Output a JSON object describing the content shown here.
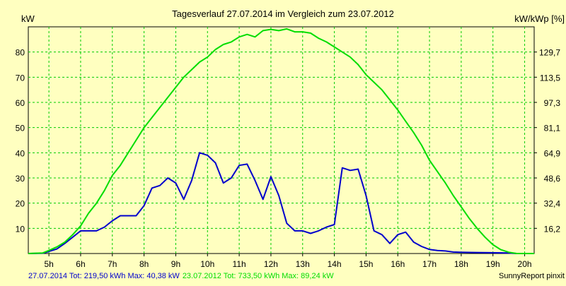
{
  "chart_data": {
    "type": "line",
    "title": "Tagesverlauf 27.07.2014 im Vergleich zum 23.07.2012",
    "ylabel_left": "kW",
    "ylabel_right": "kW/kWp [%]",
    "ylim": [
      0,
      90
    ],
    "xlim": [
      4.35,
      20.3
    ],
    "grid": true,
    "y_ticks": [
      10,
      20,
      30,
      40,
      50,
      60,
      70,
      80
    ],
    "right_ticks": [
      "16,2",
      "32,4",
      "48,6",
      "64,9",
      "81,1",
      "97,3",
      "113,5",
      "129,7"
    ],
    "x_ticks": [
      {
        "x": 5,
        "label": "5h"
      },
      {
        "x": 6,
        "label": "6h"
      },
      {
        "x": 7,
        "label": "7h"
      },
      {
        "x": 8,
        "label": "8h"
      },
      {
        "x": 9,
        "label": "9h"
      },
      {
        "x": 10,
        "label": "10h"
      },
      {
        "x": 11,
        "label": "11h"
      },
      {
        "x": 12,
        "label": "12h"
      },
      {
        "x": 13,
        "label": "13h"
      },
      {
        "x": 14,
        "label": "14h"
      },
      {
        "x": 15,
        "label": "15h"
      },
      {
        "x": 16,
        "label": "16h"
      },
      {
        "x": 17,
        "label": "17h"
      },
      {
        "x": 18,
        "label": "18h"
      },
      {
        "x": 19,
        "label": "19h"
      },
      {
        "x": 20,
        "label": "20h"
      }
    ],
    "series": [
      {
        "name": "27.07.2014",
        "color": "#0000cc",
        "legend": "27.07.2014 Tot: 219,50 kWh Max: 40,38 kW",
        "points": [
          [
            4.35,
            0
          ],
          [
            4.8,
            0.1
          ],
          [
            5.0,
            0.8
          ],
          [
            5.25,
            1.8
          ],
          [
            5.5,
            4
          ],
          [
            5.75,
            6.5
          ],
          [
            6.0,
            9
          ],
          [
            6.25,
            9
          ],
          [
            6.5,
            9
          ],
          [
            6.75,
            10.5
          ],
          [
            7.0,
            13
          ],
          [
            7.25,
            15
          ],
          [
            7.5,
            15
          ],
          [
            7.75,
            15
          ],
          [
            8.0,
            19
          ],
          [
            8.25,
            26
          ],
          [
            8.5,
            27
          ],
          [
            8.75,
            30
          ],
          [
            9.0,
            28
          ],
          [
            9.25,
            21.5
          ],
          [
            9.5,
            29
          ],
          [
            9.75,
            40
          ],
          [
            10.0,
            39
          ],
          [
            10.25,
            36
          ],
          [
            10.5,
            28
          ],
          [
            10.75,
            30
          ],
          [
            11.0,
            35
          ],
          [
            11.25,
            35.5
          ],
          [
            11.5,
            29
          ],
          [
            11.75,
            21.5
          ],
          [
            12.0,
            30.5
          ],
          [
            12.25,
            23
          ],
          [
            12.5,
            12
          ],
          [
            12.75,
            9
          ],
          [
            13.0,
            9
          ],
          [
            13.25,
            8
          ],
          [
            13.5,
            9
          ],
          [
            13.75,
            10.5
          ],
          [
            14.0,
            11.5
          ],
          [
            14.25,
            34
          ],
          [
            14.5,
            33
          ],
          [
            14.75,
            33.5
          ],
          [
            15.0,
            23
          ],
          [
            15.25,
            9
          ],
          [
            15.5,
            7.5
          ],
          [
            15.75,
            4
          ],
          [
            16.0,
            7.5
          ],
          [
            16.25,
            8.5
          ],
          [
            16.5,
            4.5
          ],
          [
            16.75,
            2.8
          ],
          [
            17.0,
            1.6
          ],
          [
            17.25,
            1.2
          ],
          [
            17.5,
            1.0
          ],
          [
            17.75,
            0.6
          ],
          [
            18.0,
            0.5
          ],
          [
            18.5,
            0.4
          ],
          [
            19.0,
            0.3
          ],
          [
            19.5,
            0.2
          ],
          [
            19.75,
            0
          ],
          [
            20.3,
            0
          ]
        ]
      },
      {
        "name": "23.07.2012",
        "color": "#00dd00",
        "legend": "23.07.2012 Tot: 733,50 kWh Max: 89,24 kW",
        "points": [
          [
            4.35,
            0
          ],
          [
            4.8,
            0.2
          ],
          [
            5.0,
            1.2
          ],
          [
            5.25,
            2.6
          ],
          [
            5.5,
            4.5
          ],
          [
            5.75,
            7.5
          ],
          [
            6.0,
            11
          ],
          [
            6.25,
            16
          ],
          [
            6.5,
            20
          ],
          [
            6.75,
            25
          ],
          [
            7.0,
            31
          ],
          [
            7.25,
            35
          ],
          [
            7.5,
            40
          ],
          [
            7.75,
            45
          ],
          [
            8.0,
            50
          ],
          [
            8.25,
            54
          ],
          [
            8.5,
            58
          ],
          [
            8.75,
            62
          ],
          [
            9.0,
            66
          ],
          [
            9.25,
            70
          ],
          [
            9.5,
            73
          ],
          [
            9.75,
            76
          ],
          [
            10.0,
            78
          ],
          [
            10.25,
            81
          ],
          [
            10.5,
            83
          ],
          [
            10.75,
            84
          ],
          [
            11.0,
            86
          ],
          [
            11.25,
            87
          ],
          [
            11.5,
            86
          ],
          [
            11.75,
            88.5
          ],
          [
            12.0,
            89
          ],
          [
            12.25,
            88.5
          ],
          [
            12.5,
            89.2
          ],
          [
            12.75,
            88
          ],
          [
            13.0,
            88
          ],
          [
            13.25,
            87.5
          ],
          [
            13.5,
            85.5
          ],
          [
            13.75,
            84
          ],
          [
            14.0,
            82
          ],
          [
            14.25,
            80
          ],
          [
            14.5,
            78
          ],
          [
            14.75,
            75
          ],
          [
            15.0,
            71
          ],
          [
            15.25,
            68
          ],
          [
            15.5,
            65
          ],
          [
            15.75,
            61
          ],
          [
            16.0,
            57
          ],
          [
            16.25,
            52.5
          ],
          [
            16.5,
            48
          ],
          [
            16.75,
            43
          ],
          [
            17.0,
            37
          ],
          [
            17.25,
            32.5
          ],
          [
            17.5,
            28
          ],
          [
            17.75,
            23
          ],
          [
            18.0,
            18.5
          ],
          [
            18.25,
            14
          ],
          [
            18.5,
            10
          ],
          [
            18.75,
            6.5
          ],
          [
            19.0,
            3.5
          ],
          [
            19.25,
            1.5
          ],
          [
            19.5,
            0.5
          ],
          [
            19.75,
            0
          ],
          [
            20.3,
            0
          ]
        ]
      }
    ],
    "credit": "SunnyReport pinxit"
  }
}
